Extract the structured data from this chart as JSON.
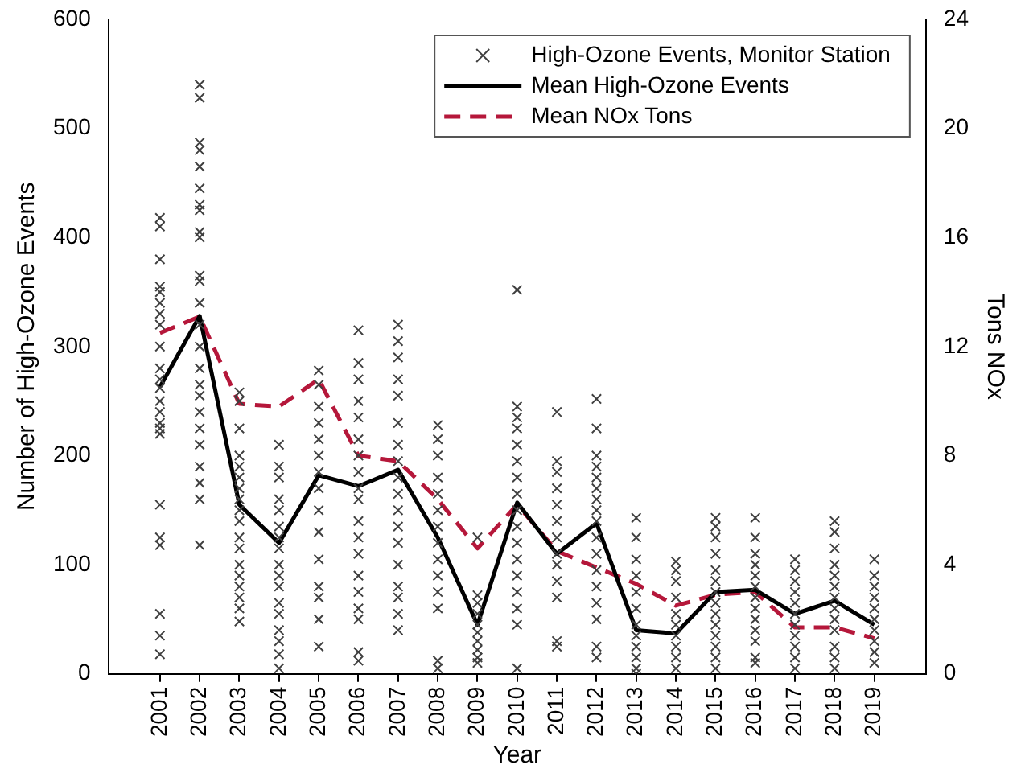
{
  "chart_data": {
    "type": "line",
    "xlabel": "Year",
    "ylabel": "Number of High-Ozone Events",
    "y2label": "Tons NOx",
    "x": [
      2001,
      2002,
      2003,
      2004,
      2005,
      2006,
      2007,
      2008,
      2009,
      2010,
      2011,
      2012,
      2013,
      2014,
      2015,
      2016,
      2017,
      2018,
      2019
    ],
    "xlim": [
      1999.7,
      2020.3
    ],
    "xticks": [
      2001,
      2002,
      2003,
      2004,
      2005,
      2006,
      2007,
      2008,
      2009,
      2010,
      2011,
      2012,
      2013,
      2014,
      2015,
      2016,
      2017,
      2018,
      2019
    ],
    "ylim": [
      0,
      600
    ],
    "yticks": [
      0,
      100,
      200,
      300,
      400,
      500,
      600
    ],
    "y2lim": [
      0,
      24
    ],
    "y2ticks": [
      0,
      4,
      8,
      12,
      16,
      20,
      24
    ],
    "grid": false,
    "legend": "top right",
    "series": [
      {
        "name": "High-Ozone Events, Monitor Station",
        "type": "scatter",
        "marker": "cross",
        "color": "#404040",
        "x": [
          2001,
          2001,
          2001,
          2001,
          2001,
          2001,
          2001,
          2001,
          2001,
          2001,
          2001,
          2001,
          2001,
          2001,
          2001,
          2001,
          2001,
          2001,
          2001,
          2001,
          2001,
          2001,
          2001,
          2002,
          2002,
          2002,
          2002,
          2002,
          2002,
          2002,
          2002,
          2002,
          2002,
          2002,
          2002,
          2002,
          2002,
          2002,
          2002,
          2002,
          2002,
          2002,
          2002,
          2002,
          2002,
          2002,
          2002,
          2002,
          2003,
          2003,
          2003,
          2003,
          2003,
          2003,
          2003,
          2003,
          2003,
          2003,
          2003,
          2003,
          2003,
          2003,
          2003,
          2003,
          2003,
          2003,
          2004,
          2004,
          2004,
          2004,
          2004,
          2004,
          2004,
          2004,
          2004,
          2004,
          2004,
          2004,
          2004,
          2004,
          2004,
          2004,
          2004,
          2005,
          2005,
          2005,
          2005,
          2005,
          2005,
          2005,
          2005,
          2005,
          2005,
          2005,
          2005,
          2005,
          2005,
          2005,
          2006,
          2006,
          2006,
          2006,
          2006,
          2006,
          2006,
          2006,
          2006,
          2006,
          2006,
          2006,
          2006,
          2006,
          2006,
          2006,
          2006,
          2006,
          2006,
          2007,
          2007,
          2007,
          2007,
          2007,
          2007,
          2007,
          2007,
          2007,
          2007,
          2007,
          2007,
          2007,
          2007,
          2007,
          2007,
          2007,
          2007,
          2008,
          2008,
          2008,
          2008,
          2008,
          2008,
          2008,
          2008,
          2008,
          2008,
          2008,
          2008,
          2008,
          2008,
          2009,
          2009,
          2009,
          2009,
          2009,
          2009,
          2009,
          2009,
          2009,
          2009,
          2010,
          2010,
          2010,
          2010,
          2010,
          2010,
          2010,
          2010,
          2010,
          2010,
          2010,
          2010,
          2010,
          2010,
          2010,
          2010,
          2010,
          2011,
          2011,
          2011,
          2011,
          2011,
          2011,
          2011,
          2011,
          2011,
          2011,
          2011,
          2011,
          2011,
          2012,
          2012,
          2012,
          2012,
          2012,
          2012,
          2012,
          2012,
          2012,
          2012,
          2012,
          2012,
          2012,
          2012,
          2012,
          2012,
          2012,
          2013,
          2013,
          2013,
          2013,
          2013,
          2013,
          2013,
          2013,
          2013,
          2013,
          2013,
          2013,
          2014,
          2014,
          2014,
          2014,
          2014,
          2014,
          2014,
          2014,
          2014,
          2014,
          2015,
          2015,
          2015,
          2015,
          2015,
          2015,
          2015,
          2015,
          2015,
          2015,
          2015,
          2015,
          2015,
          2015,
          2016,
          2016,
          2016,
          2016,
          2016,
          2016,
          2016,
          2016,
          2016,
          2016,
          2016,
          2016,
          2016,
          2017,
          2017,
          2017,
          2017,
          2017,
          2017,
          2017,
          2017,
          2017,
          2017,
          2017,
          2018,
          2018,
          2018,
          2018,
          2018,
          2018,
          2018,
          2018,
          2018,
          2018,
          2018,
          2018,
          2018,
          2019,
          2019,
          2019,
          2019,
          2019,
          2019,
          2019,
          2019,
          2019,
          2019
        ],
        "values": [
          418,
          410,
          380,
          355,
          350,
          340,
          330,
          320,
          300,
          280,
          270,
          262,
          250,
          240,
          230,
          225,
          220,
          155,
          125,
          118,
          55,
          35,
          18,
          540,
          528,
          487,
          480,
          465,
          445,
          430,
          425,
          405,
          400,
          365,
          360,
          340,
          320,
          300,
          280,
          265,
          255,
          240,
          225,
          210,
          190,
          175,
          160,
          118,
          258,
          250,
          225,
          200,
          190,
          180,
          170,
          160,
          150,
          140,
          125,
          115,
          100,
          90,
          80,
          70,
          60,
          48,
          210,
          190,
          180,
          160,
          150,
          135,
          125,
          115,
          100,
          90,
          80,
          65,
          55,
          40,
          30,
          18,
          5,
          278,
          265,
          245,
          230,
          215,
          200,
          185,
          170,
          150,
          130,
          105,
          80,
          70,
          50,
          25,
          315,
          285,
          270,
          250,
          235,
          215,
          200,
          185,
          170,
          160,
          140,
          125,
          110,
          90,
          75,
          60,
          50,
          20,
          12,
          320,
          305,
          290,
          270,
          255,
          230,
          210,
          195,
          180,
          165,
          150,
          135,
          120,
          100,
          80,
          70,
          55,
          40,
          228,
          215,
          200,
          180,
          165,
          150,
          135,
          120,
          105,
          90,
          75,
          60,
          12,
          5,
          125,
          72,
          65,
          55,
          45,
          38,
          30,
          22,
          15,
          10,
          352,
          245,
          235,
          225,
          210,
          195,
          180,
          165,
          150,
          135,
          120,
          105,
          90,
          75,
          60,
          45,
          5,
          240,
          195,
          185,
          170,
          155,
          140,
          125,
          110,
          100,
          85,
          70,
          30,
          25,
          252,
          225,
          200,
          190,
          180,
          170,
          160,
          150,
          140,
          125,
          110,
          95,
          80,
          65,
          50,
          25,
          15,
          143,
          125,
          105,
          90,
          75,
          60,
          45,
          35,
          25,
          15,
          5,
          0,
          103,
          95,
          85,
          70,
          55,
          45,
          35,
          25,
          15,
          5,
          143,
          135,
          125,
          110,
          95,
          85,
          75,
          65,
          55,
          45,
          35,
          25,
          15,
          5,
          143,
          125,
          110,
          100,
          90,
          80,
          70,
          60,
          50,
          40,
          30,
          15,
          10,
          105,
          95,
          85,
          75,
          65,
          55,
          45,
          35,
          25,
          15,
          5,
          140,
          130,
          115,
          100,
          90,
          80,
          70,
          60,
          50,
          40,
          25,
          15,
          5,
          105,
          90,
          80,
          70,
          60,
          50,
          40,
          30,
          20,
          10
        ]
      },
      {
        "name": "Mean High-Ozone Events",
        "marker": "none",
        "line_style": "solid",
        "color": "#000000",
        "values": [
          263,
          328,
          155,
          120,
          182,
          172,
          187,
          125,
          45,
          157,
          110,
          138,
          40,
          37,
          75,
          77,
          55,
          67,
          45
        ]
      },
      {
        "name": "Mean NOx Tons",
        "marker": "none",
        "line_style": "dashed",
        "axis": "y2",
        "color": "#b5173a",
        "values": [
          12.5,
          13.1,
          9.9,
          9.8,
          10.8,
          8.0,
          7.8,
          6.4,
          4.6,
          6.2,
          4.5,
          3.9,
          3.3,
          2.5,
          2.9,
          3.0,
          1.7,
          1.7,
          1.3
        ]
      }
    ]
  }
}
